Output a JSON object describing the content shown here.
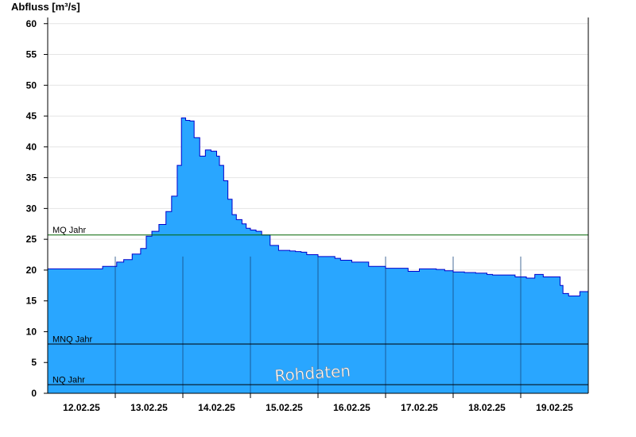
{
  "chart_data": {
    "type": "area",
    "ylabel": "Abfluss [m³/s]",
    "ylim": [
      0,
      61
    ],
    "yticks": [
      0,
      5,
      10,
      15,
      20,
      25,
      30,
      35,
      40,
      45,
      50,
      55,
      60
    ],
    "xlim": [
      "2025-02-11T12:00",
      "2025-02-19T12:00"
    ],
    "x_tick_labels": [
      "12.02.25",
      "13.02.25",
      "14.02.25",
      "15.02.25",
      "16.02.25",
      "17.02.25",
      "18.02.25",
      "19.02.25"
    ],
    "x_day_boundaries": [
      "2025-02-12T12:00",
      "2025-02-13T12:00",
      "2025-02-14T12:00",
      "2025-02-15T12:00",
      "2025-02-16T12:00",
      "2025-02-17T12:00",
      "2025-02-18T12:00"
    ],
    "grid": true,
    "fill_color": "#29a6ff",
    "line_color": "#0000cc",
    "series": [
      {
        "x": [
          "2025-02-11T12:00",
          "2025-02-12T07:00",
          "2025-02-12T07:30",
          "2025-02-12T11:30",
          "2025-02-12T12:30",
          "2025-02-12T15:00",
          "2025-02-12T18:00",
          "2025-02-12T21:00",
          "2025-02-12T23:00",
          "2025-02-13T01:00",
          "2025-02-13T03:30",
          "2025-02-13T06:00",
          "2025-02-13T08:00",
          "2025-02-13T10:00",
          "2025-02-13T11:30",
          "2025-02-13T13:00",
          "2025-02-13T14:30",
          "2025-02-13T16:00",
          "2025-02-13T18:00",
          "2025-02-13T20:00",
          "2025-02-13T22:00",
          "2025-02-14T00:00",
          "2025-02-14T01:00",
          "2025-02-14T02:30",
          "2025-02-14T04:00",
          "2025-02-14T05:30",
          "2025-02-14T07:00",
          "2025-02-14T09:00",
          "2025-02-14T10:30",
          "2025-02-14T12:00",
          "2025-02-14T14:00",
          "2025-02-14T16:00",
          "2025-02-14T19:00",
          "2025-02-14T22:00",
          "2025-02-15T00:00",
          "2025-02-15T02:00",
          "2025-02-15T04:00",
          "2025-02-15T06:00",
          "2025-02-15T08:00",
          "2025-02-15T12:00",
          "2025-02-15T18:00",
          "2025-02-15T20:00",
          "2025-02-16T00:00",
          "2025-02-16T06:00",
          "2025-02-16T12:00",
          "2025-02-16T20:00",
          "2025-02-17T00:00",
          "2025-02-17T06:00",
          "2025-02-17T09:00",
          "2025-02-17T12:00",
          "2025-02-17T16:00",
          "2025-02-17T20:00",
          "2025-02-18T00:00",
          "2025-02-18T02:00",
          "2025-02-18T06:00",
          "2025-02-18T10:00",
          "2025-02-18T14:00",
          "2025-02-18T17:00",
          "2025-02-18T20:00",
          "2025-02-19T00:00",
          "2025-02-19T02:00",
          "2025-02-19T03:00",
          "2025-02-19T05:00",
          "2025-02-19T07:00",
          "2025-02-19T09:00",
          "2025-02-19T12:00"
        ],
        "values": [
          20.2,
          20.2,
          20.6,
          20.6,
          21.3,
          21.7,
          22.6,
          23.5,
          25.5,
          26.3,
          27.4,
          29.5,
          32.0,
          37.0,
          44.7,
          44.3,
          44.2,
          41.5,
          38.5,
          39.5,
          39.3,
          38.5,
          37.0,
          34.5,
          31.5,
          29.0,
          28.2,
          27.5,
          26.8,
          26.5,
          26.3,
          25.7,
          24.0,
          23.2,
          23.2,
          23.1,
          23.0,
          22.9,
          22.5,
          22.2,
          21.9,
          21.6,
          21.3,
          20.6,
          20.3,
          19.8,
          20.2,
          20.1,
          19.9,
          19.7,
          19.6,
          19.5,
          19.3,
          19.2,
          19.2,
          18.9,
          18.7,
          19.3,
          18.9,
          18.9,
          17.5,
          16.2,
          15.8,
          15.8,
          16.5,
          16.6
        ]
      }
    ],
    "reference_lines": [
      {
        "label": "MQ Jahr",
        "value": 25.7,
        "color": "#006400"
      },
      {
        "label": "MNQ Jahr",
        "value": 8.0,
        "color": "#000000"
      },
      {
        "label": "NQ Jahr",
        "value": 1.4,
        "color": "#000000"
      }
    ],
    "watermark": "Rohdaten"
  }
}
